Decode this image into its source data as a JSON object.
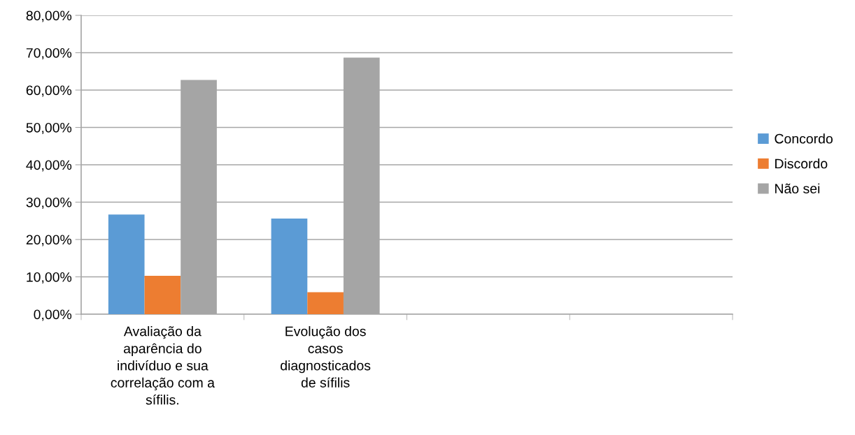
{
  "chart_data": {
    "type": "bar",
    "categories": [
      "Avaliação da aparência do indivíduo e sua correlação com a sífilis.",
      "Evolução dos casos diagnosticados de sífilis",
      null,
      null
    ],
    "series": [
      {
        "name": "Concordo",
        "color": "#5b9bd5",
        "values": [
          26.7,
          25.6,
          null,
          null
        ]
      },
      {
        "name": "Discordo",
        "color": "#ed7d31",
        "values": [
          10.3,
          5.9,
          null,
          null
        ]
      },
      {
        "name": "Não sei",
        "color": "#a5a5a5",
        "values": [
          62.7,
          68.7,
          null,
          null
        ]
      }
    ],
    "ylim": [
      0,
      80
    ],
    "yticks": [
      {
        "value": 0,
        "label": "0,00%"
      },
      {
        "value": 10,
        "label": "10,00%"
      },
      {
        "value": 20,
        "label": "20,00%"
      },
      {
        "value": 30,
        "label": "30,00%"
      },
      {
        "value": 40,
        "label": "40,00%"
      },
      {
        "value": 50,
        "label": "50,00%"
      },
      {
        "value": 60,
        "label": "60,00%"
      },
      {
        "value": 70,
        "label": "70,00%"
      },
      {
        "value": 80,
        "label": "80,00%"
      }
    ],
    "grid": "y",
    "legend": "right"
  }
}
